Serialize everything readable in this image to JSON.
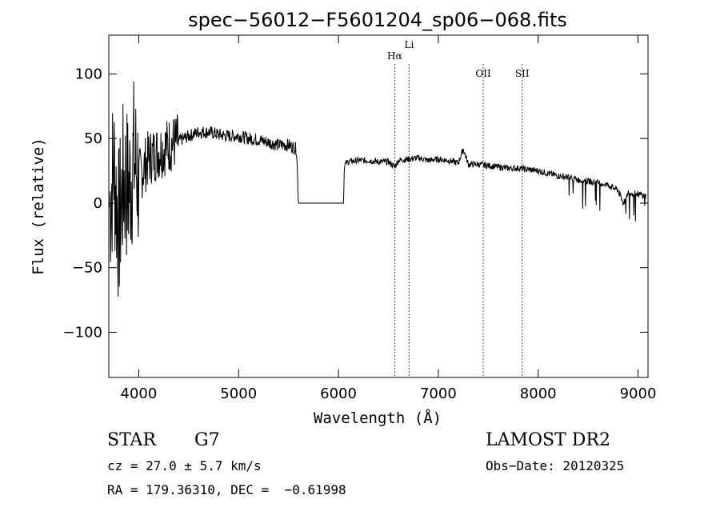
{
  "chart_data": {
    "type": "line",
    "title": "spec−56012−F5601204_sp06−068.fits",
    "xlabel": "Wavelength (Å)",
    "ylabel": "Flux (relative)",
    "xlim": [
      3700,
      9100
    ],
    "ylim": [
      -135,
      130
    ],
    "x_ticks": [
      4000,
      5000,
      6000,
      7000,
      8000,
      9000
    ],
    "y_ticks": [
      -100,
      -50,
      0,
      50,
      100
    ],
    "y_tick_labels": [
      "−100",
      "−50",
      "0",
      "50",
      "100"
    ],
    "grid": false,
    "color": "#000000",
    "spectrum": {
      "x": [
        3700,
        3750,
        3800,
        3850,
        3900,
        3950,
        4000,
        4100,
        4200,
        4300,
        4400,
        4500,
        4600,
        4700,
        4800,
        4900,
        5000,
        5100,
        5200,
        5300,
        5400,
        5500,
        5580,
        5600,
        6050,
        6060,
        6100,
        6200,
        6300,
        6400,
        6500,
        6563,
        6600,
        6700,
        6800,
        6900,
        7000,
        7100,
        7200,
        7250,
        7300,
        7400,
        7500,
        7600,
        7700,
        7800,
        7900,
        8000,
        8100,
        8200,
        8300,
        8400,
        8500,
        8600,
        8700,
        8800,
        8850,
        8900,
        9000,
        9100
      ],
      "y": [
        -10,
        30,
        -20,
        20,
        10,
        35,
        20,
        35,
        40,
        45,
        48,
        52,
        55,
        55,
        53,
        52,
        52,
        50,
        49,
        47,
        45,
        45,
        42,
        0,
        0,
        30,
        32,
        33,
        33,
        32,
        32,
        28,
        33,
        34,
        35,
        33,
        34,
        33,
        31,
        42,
        30,
        30,
        29,
        28,
        27,
        27,
        26,
        25,
        23,
        21,
        20,
        18,
        17,
        16,
        14,
        10,
        0,
        8,
        7,
        5
      ]
    },
    "lines": [
      {
        "name": "Hα",
        "x": 6563,
        "color": "#b22222"
      },
      {
        "name": "Li",
        "x": 6708,
        "color": "#b22222"
      },
      {
        "name": "OII",
        "x": 7450,
        "color": "#b22222"
      },
      {
        "name": "SII",
        "x": 7840,
        "color": "#b22222"
      }
    ]
  },
  "info": {
    "class": "STAR",
    "subclass": "G7",
    "survey": "LAMOST DR2",
    "cz": "cz = 27.0 ± 5.7 km/s",
    "obs_date": "Obs−Date: 20120325",
    "coords": "RA = 179.36310, DEC =  −0.61998"
  }
}
